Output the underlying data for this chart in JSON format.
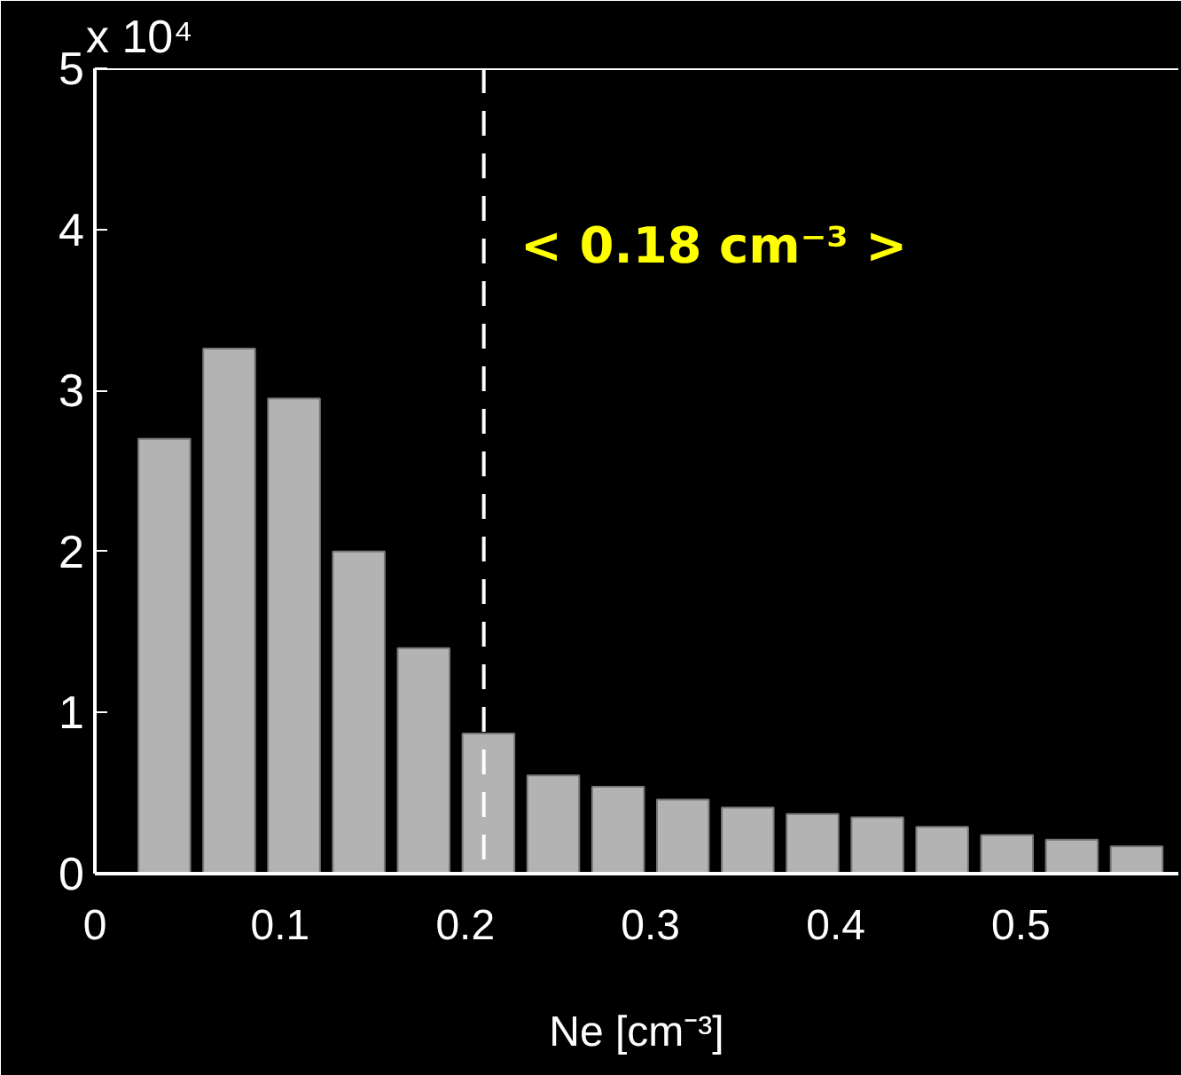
{
  "chart_data": {
    "type": "histogram",
    "xlabel": "Ne [cm⁻³]",
    "bins": [
      0.02,
      0.055,
      0.09,
      0.125,
      0.16,
      0.195,
      0.23,
      0.265,
      0.3,
      0.335,
      0.37,
      0.405,
      0.44,
      0.475,
      0.51,
      0.545,
      0.58
    ],
    "values": [
      2.7,
      3.26,
      2.95,
      2.0,
      1.4,
      0.87,
      0.61,
      0.54,
      0.46,
      0.41,
      0.37,
      0.35,
      0.29,
      0.24,
      0.21,
      0.17
    ],
    "color": "#b3b3b3",
    "xlim": [
      0,
      0.585
    ],
    "ylim": [
      0,
      5
    ],
    "xticks": [
      0,
      0.1,
      0.2,
      0.3,
      0.4,
      0.5
    ],
    "yticks": [
      0,
      1,
      2,
      3,
      4,
      5
    ],
    "ref_lines": [
      {
        "axis": "x",
        "value": 0.21,
        "color": "#ffffff",
        "line_style": "dashed"
      }
    ],
    "annotations": [
      "x 10⁴",
      "< 0.18 cm⁻³ >"
    ]
  }
}
